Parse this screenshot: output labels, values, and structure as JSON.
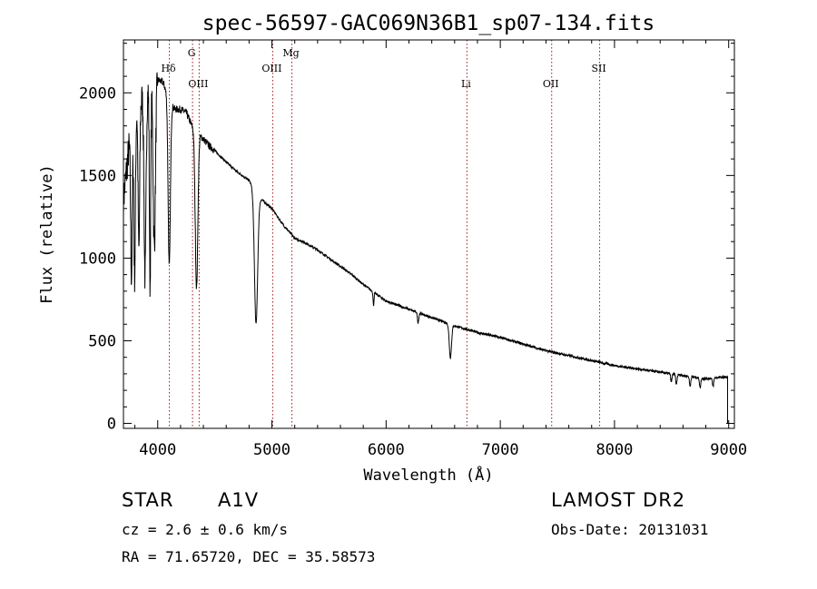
{
  "chart_data": {
    "type": "line",
    "title": "spec-56597-GAC069N36B1_sp07-134.fits",
    "xlabel": "Wavelength (Å)",
    "ylabel": "Flux (relative)",
    "xlim": [
      3700,
      9050
    ],
    "ylim": [
      -30,
      2320
    ],
    "xticks": [
      4000,
      5000,
      6000,
      7000,
      8000,
      9000
    ],
    "yticks": [
      0,
      500,
      1000,
      1500,
      2000
    ],
    "grid": false,
    "continuum": {
      "x": [
        3700,
        3760,
        3800,
        3850,
        3900,
        3950,
        4000,
        4050,
        4100,
        4150,
        4200,
        4250,
        4300,
        4350,
        4400,
        4450,
        4500,
        4600,
        4700,
        4800,
        4900,
        5000,
        5100,
        5200,
        5300,
        5400,
        5500,
        5600,
        5700,
        5800,
        5900,
        6000,
        6200,
        6400,
        6600,
        6800,
        7000,
        7200,
        7400,
        7600,
        7800,
        8000,
        8200,
        8400,
        8600,
        8800,
        8950
      ],
      "y": [
        1350,
        1750,
        1900,
        1950,
        2000,
        2050,
        2080,
        2060,
        1950,
        1900,
        1900,
        1880,
        1800,
        1760,
        1720,
        1680,
        1650,
        1580,
        1520,
        1470,
        1360,
        1300,
        1200,
        1120,
        1090,
        1050,
        1000,
        950,
        900,
        840,
        790,
        740,
        690,
        640,
        590,
        550,
        520,
        480,
        440,
        410,
        380,
        350,
        330,
        310,
        290,
        270,
        280
      ]
    },
    "absorption_lines": [
      {
        "center": 3770,
        "depth": 900,
        "width": 10
      },
      {
        "center": 3798,
        "depth": 1000,
        "width": 10
      },
      {
        "center": 3835,
        "depth": 900,
        "width": 10
      },
      {
        "center": 3889,
        "depth": 1100,
        "width": 12
      },
      {
        "center": 3933,
        "depth": 1200,
        "width": 8
      },
      {
        "center": 3970,
        "depth": 1000,
        "width": 14
      },
      {
        "center": 4101,
        "depth": 1000,
        "width": 14
      },
      {
        "center": 4340,
        "depth": 950,
        "width": 16
      },
      {
        "center": 4861,
        "depth": 800,
        "width": 20
      },
      {
        "center": 5890,
        "depth": 80,
        "width": 6
      },
      {
        "center": 6280,
        "depth": 60,
        "width": 8
      },
      {
        "center": 6563,
        "depth": 200,
        "width": 14
      },
      {
        "center": 8498,
        "depth": 50,
        "width": 8
      },
      {
        "center": 8542,
        "depth": 60,
        "width": 8
      },
      {
        "center": 8662,
        "depth": 60,
        "width": 8
      },
      {
        "center": 8750,
        "depth": 60,
        "width": 8
      },
      {
        "center": 8863,
        "depth": 50,
        "width": 8
      }
    ],
    "spectral_lines": [
      {
        "label": "Hδ",
        "wavelength": 4102,
        "level": "upper"
      },
      {
        "label": "G",
        "wavelength": 4305,
        "level": "top"
      },
      {
        "label": "OIII",
        "wavelength": 4363,
        "level": "lower"
      },
      {
        "label": "OIII",
        "wavelength": 5007,
        "level": "upper"
      },
      {
        "label": "Mg",
        "wavelength": 5175,
        "level": "top"
      },
      {
        "label": "Li",
        "wavelength": 6708,
        "level": "lower"
      },
      {
        "label": "OII",
        "wavelength": 7450,
        "level": "lower"
      },
      {
        "label": "SII",
        "wavelength": 7870,
        "level": "upper"
      }
    ]
  },
  "footer": {
    "object_type": "STAR",
    "spectral_class": "A1V",
    "survey": "LAMOST DR2",
    "redshift": "cz = 2.6 ± 0.6 km/s",
    "obs_date": "Obs-Date: 20131031",
    "coords": "RA =  71.65720, DEC =  35.58573"
  }
}
